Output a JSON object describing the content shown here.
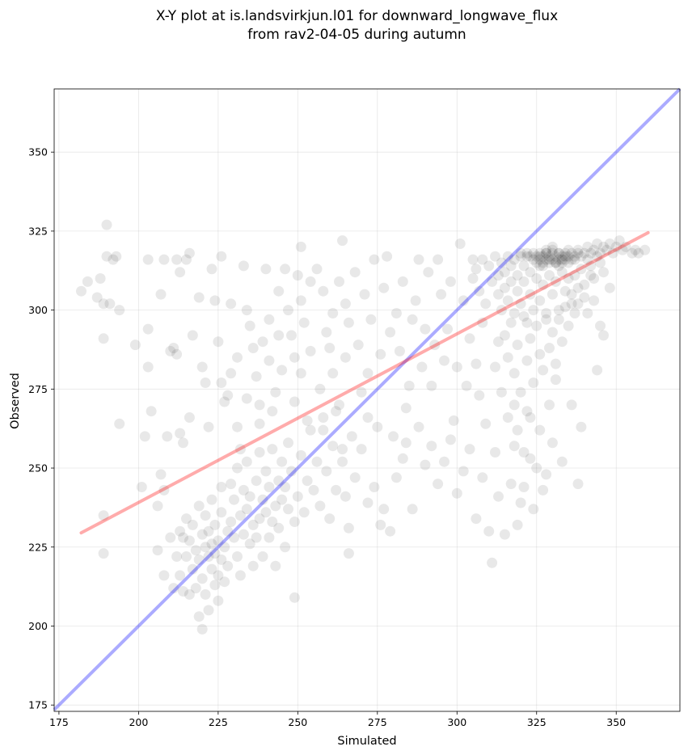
{
  "chart_data": {
    "type": "scatter",
    "title_lines": [
      "X-Y plot at is.landsvirkjun.l01 for downward_longwave_flux",
      "from rav2-04-05 during autumn"
    ],
    "xlabel": "Simulated",
    "ylabel": "Observed",
    "xlim": [
      173.5,
      370
    ],
    "ylim": [
      173,
      370
    ],
    "xticks": [
      175,
      200,
      225,
      250,
      275,
      300,
      325,
      350
    ],
    "yticks": [
      175,
      200,
      225,
      250,
      275,
      300,
      325,
      350
    ],
    "grid": true,
    "colors": {
      "points": "#000000",
      "identity_line": "#0000ff",
      "fit_line": "#ff0000"
    },
    "identity_line": {
      "x": [
        173.5,
        370
      ],
      "y": [
        173.5,
        370
      ]
    },
    "fit_line": {
      "x": [
        182,
        360
      ],
      "y": [
        229.5,
        324.5
      ]
    },
    "points": [
      [
        182,
        306
      ],
      [
        184,
        309
      ],
      [
        187,
        304
      ],
      [
        188,
        310
      ],
      [
        189,
        302
      ],
      [
        190,
        317
      ],
      [
        190,
        327
      ],
      [
        191,
        302
      ],
      [
        192,
        316
      ],
      [
        193,
        317
      ],
      [
        194,
        300
      ],
      [
        189,
        291
      ],
      [
        199,
        289
      ],
      [
        189,
        235
      ],
      [
        189,
        223
      ],
      [
        194,
        264
      ],
      [
        201,
        244
      ],
      [
        202,
        260
      ],
      [
        203,
        316
      ],
      [
        203,
        294
      ],
      [
        203,
        282
      ],
      [
        204,
        268
      ],
      [
        206,
        238
      ],
      [
        207,
        305
      ],
      [
        207,
        248
      ],
      [
        208,
        243
      ],
      [
        208,
        316
      ],
      [
        209,
        260
      ],
      [
        210,
        287
      ],
      [
        211,
        288
      ],
      [
        212,
        316
      ],
      [
        212,
        286
      ],
      [
        213,
        312
      ],
      [
        213,
        261
      ],
      [
        214,
        258
      ],
      [
        215,
        316
      ],
      [
        216,
        318
      ],
      [
        216,
        266
      ],
      [
        217,
        292
      ],
      [
        219,
        304
      ],
      [
        220,
        282
      ],
      [
        221,
        277
      ],
      [
        222,
        263
      ],
      [
        223,
        313
      ],
      [
        224,
        303
      ],
      [
        225,
        290
      ],
      [
        226,
        317
      ],
      [
        226,
        277
      ],
      [
        227,
        271
      ],
      [
        228,
        273
      ],
      [
        229,
        280
      ],
      [
        229,
        302
      ],
      [
        231,
        285
      ],
      [
        231,
        263
      ],
      [
        232,
        256
      ],
      [
        233,
        314
      ],
      [
        234,
        300
      ],
      [
        234,
        272
      ],
      [
        235,
        295
      ],
      [
        236,
        288
      ],
      [
        237,
        279
      ],
      [
        238,
        264
      ],
      [
        238,
        270
      ],
      [
        239,
        290
      ],
      [
        240,
        313
      ],
      [
        241,
        297
      ],
      [
        241,
        284
      ],
      [
        242,
        268
      ],
      [
        243,
        274
      ],
      [
        244,
        306
      ],
      [
        244,
        292
      ],
      [
        245,
        281
      ],
      [
        246,
        313
      ],
      [
        247,
        300
      ],
      [
        248,
        292
      ],
      [
        249,
        285
      ],
      [
        249,
        271
      ],
      [
        250,
        311
      ],
      [
        251,
        320
      ],
      [
        251,
        303
      ],
      [
        251,
        280
      ],
      [
        252,
        296
      ],
      [
        253,
        265
      ],
      [
        254,
        309
      ],
      [
        254,
        287
      ],
      [
        256,
        313
      ],
      [
        257,
        275
      ],
      [
        258,
        262
      ],
      [
        258,
        306
      ],
      [
        259,
        293
      ],
      [
        260,
        288
      ],
      [
        261,
        280
      ],
      [
        261,
        299
      ],
      [
        262,
        268
      ],
      [
        263,
        309
      ],
      [
        264,
        322
      ],
      [
        264,
        256
      ],
      [
        265,
        302
      ],
      [
        265,
        285
      ],
      [
        266,
        296
      ],
      [
        267,
        260
      ],
      [
        268,
        312
      ],
      [
        269,
        289
      ],
      [
        270,
        274
      ],
      [
        271,
        305
      ],
      [
        272,
        280
      ],
      [
        272,
        266
      ],
      [
        273,
        297
      ],
      [
        274,
        316
      ],
      [
        275,
        263
      ],
      [
        276,
        286
      ],
      [
        277,
        307
      ],
      [
        278,
        317
      ],
      [
        279,
        293
      ],
      [
        280,
        260
      ],
      [
        281,
        299
      ],
      [
        282,
        287
      ],
      [
        283,
        309
      ],
      [
        284,
        269
      ],
      [
        285,
        276
      ],
      [
        286,
        297
      ],
      [
        287,
        303
      ],
      [
        288,
        316
      ],
      [
        289,
        282
      ],
      [
        290,
        294
      ],
      [
        291,
        312
      ],
      [
        292,
        276
      ],
      [
        293,
        289
      ],
      [
        294,
        316
      ],
      [
        295,
        305
      ],
      [
        296,
        284
      ],
      [
        297,
        294
      ],
      [
        298,
        309
      ],
      [
        299,
        265
      ],
      [
        300,
        282
      ],
      [
        301,
        321
      ],
      [
        302,
        303
      ],
      [
        303,
        276
      ],
      [
        304,
        291
      ],
      [
        305,
        316
      ],
      [
        306,
        283
      ],
      [
        307,
        273
      ],
      [
        308,
        296
      ],
      [
        309,
        264
      ],
      [
        310,
        230
      ],
      [
        311,
        220
      ],
      [
        312,
        255
      ],
      [
        313,
        241
      ],
      [
        315,
        229
      ],
      [
        317,
        245
      ],
      [
        318,
        257
      ],
      [
        319,
        232
      ],
      [
        320,
        239
      ],
      [
        321,
        244
      ],
      [
        322,
        268
      ],
      [
        323,
        253
      ],
      [
        324,
        237
      ],
      [
        325,
        250
      ],
      [
        326,
        262
      ],
      [
        327,
        243
      ],
      [
        328,
        248
      ],
      [
        329,
        270
      ],
      [
        330,
        258
      ],
      [
        331,
        278
      ],
      [
        333,
        252
      ],
      [
        336,
        270
      ],
      [
        338,
        245
      ],
      [
        339,
        263
      ],
      [
        340,
        308
      ],
      [
        341,
        299
      ],
      [
        342,
        311
      ],
      [
        343,
        303
      ],
      [
        344,
        281
      ],
      [
        345,
        295
      ],
      [
        346,
        292
      ],
      [
        348,
        307
      ],
      [
        206,
        224
      ],
      [
        208,
        216
      ],
      [
        210,
        228
      ],
      [
        211,
        212
      ],
      [
        212,
        222
      ],
      [
        213,
        230
      ],
      [
        213,
        216
      ],
      [
        214,
        228
      ],
      [
        214,
        211
      ],
      [
        215,
        234
      ],
      [
        215,
        222
      ],
      [
        216,
        210
      ],
      [
        216,
        227
      ],
      [
        217,
        218
      ],
      [
        217,
        232
      ],
      [
        218,
        224
      ],
      [
        218,
        212
      ],
      [
        219,
        238
      ],
      [
        219,
        221
      ],
      [
        219,
        203
      ],
      [
        220,
        229
      ],
      [
        220,
        215
      ],
      [
        220,
        199
      ],
      [
        221,
        225
      ],
      [
        221,
        210
      ],
      [
        221,
        235
      ],
      [
        222,
        222
      ],
      [
        222,
        205
      ],
      [
        222,
        230
      ],
      [
        223,
        218
      ],
      [
        223,
        226
      ],
      [
        223,
        240
      ],
      [
        224,
        213
      ],
      [
        224,
        223
      ],
      [
        224,
        232
      ],
      [
        225,
        216
      ],
      [
        225,
        227
      ],
      [
        225,
        208
      ],
      [
        226,
        221
      ],
      [
        226,
        236
      ],
      [
        226,
        244
      ],
      [
        227,
        225
      ],
      [
        227,
        214
      ],
      [
        228,
        230
      ],
      [
        228,
        219
      ],
      [
        229,
        245
      ],
      [
        229,
        233
      ],
      [
        230,
        228
      ],
      [
        230,
        240
      ],
      [
        231,
        222
      ],
      [
        231,
        250
      ],
      [
        232,
        235
      ],
      [
        232,
        216
      ],
      [
        233,
        243
      ],
      [
        233,
        229
      ],
      [
        234,
        237
      ],
      [
        234,
        252
      ],
      [
        235,
        226
      ],
      [
        235,
        241
      ],
      [
        236,
        232
      ],
      [
        236,
        219
      ],
      [
        237,
        246
      ],
      [
        237,
        228
      ],
      [
        238,
        234
      ],
      [
        238,
        255
      ],
      [
        239,
        240
      ],
      [
        239,
        222
      ],
      [
        240,
        249
      ],
      [
        240,
        236
      ],
      [
        241,
        228
      ],
      [
        241,
        244
      ],
      [
        242,
        233
      ],
      [
        242,
        256
      ],
      [
        243,
        238
      ],
      [
        243,
        219
      ],
      [
        244,
        246
      ],
      [
        244,
        231
      ],
      [
        245,
        252
      ],
      [
        245,
        240
      ],
      [
        246,
        225
      ],
      [
        246,
        244
      ],
      [
        247,
        237
      ],
      [
        247,
        258
      ],
      [
        248,
        249
      ],
      [
        249,
        233
      ],
      [
        249,
        209
      ],
      [
        250,
        241
      ],
      [
        251,
        254
      ],
      [
        252,
        236
      ],
      [
        253,
        246
      ],
      [
        254,
        262
      ],
      [
        255,
        243
      ],
      [
        256,
        252
      ],
      [
        257,
        238
      ],
      [
        258,
        266
      ],
      [
        259,
        249
      ],
      [
        260,
        234
      ],
      [
        261,
        257
      ],
      [
        262,
        243
      ],
      [
        263,
        270
      ],
      [
        264,
        252
      ],
      [
        265,
        241
      ],
      [
        266,
        231
      ],
      [
        266,
        223
      ],
      [
        268,
        247
      ],
      [
        270,
        256
      ],
      [
        272,
        239
      ],
      [
        274,
        244
      ],
      [
        276,
        232
      ],
      [
        277,
        237
      ],
      [
        279,
        230
      ],
      [
        281,
        247
      ],
      [
        283,
        253
      ],
      [
        284,
        258
      ],
      [
        286,
        237
      ],
      [
        288,
        263
      ],
      [
        290,
        251
      ],
      [
        292,
        257
      ],
      [
        294,
        245
      ],
      [
        296,
        252
      ],
      [
        298,
        259
      ],
      [
        300,
        242
      ],
      [
        302,
        249
      ],
      [
        304,
        256
      ],
      [
        306,
        234
      ],
      [
        308,
        247
      ],
      [
        305,
        310
      ],
      [
        306,
        313
      ],
      [
        307,
        306
      ],
      [
        308,
        316
      ],
      [
        309,
        302
      ],
      [
        310,
        314
      ],
      [
        311,
        309
      ],
      [
        312,
        317
      ],
      [
        313,
        305
      ],
      [
        313,
        311
      ],
      [
        314,
        315
      ],
      [
        314,
        300
      ],
      [
        315,
        312
      ],
      [
        315,
        307
      ],
      [
        316,
        317
      ],
      [
        316,
        303
      ],
      [
        317,
        314
      ],
      [
        317,
        309
      ],
      [
        318,
        316
      ],
      [
        318,
        299
      ],
      [
        319,
        311
      ],
      [
        319,
        306
      ],
      [
        320,
        318
      ],
      [
        320,
        302
      ],
      [
        321,
        314
      ],
      [
        321,
        309
      ],
      [
        322,
        317
      ],
      [
        322,
        296
      ],
      [
        323,
        312
      ],
      [
        323,
        305
      ],
      [
        324,
        318
      ],
      [
        324,
        300
      ],
      [
        325,
        315
      ],
      [
        325,
        310
      ],
      [
        326,
        317
      ],
      [
        326,
        303
      ],
      [
        327,
        314
      ],
      [
        327,
        308
      ],
      [
        328,
        318
      ],
      [
        328,
        297
      ],
      [
        329,
        316
      ],
      [
        329,
        311
      ],
      [
        330,
        319
      ],
      [
        330,
        305
      ],
      [
        331,
        315
      ],
      [
        331,
        309
      ],
      [
        332,
        318
      ],
      [
        332,
        300
      ],
      [
        333,
        316
      ],
      [
        333,
        312
      ],
      [
        334,
        317
      ],
      [
        334,
        306
      ],
      [
        335,
        315
      ],
      [
        335,
        310
      ],
      [
        336,
        318
      ],
      [
        336,
        302
      ],
      [
        337,
        316
      ],
      [
        337,
        311
      ],
      [
        338,
        319
      ],
      [
        338,
        307
      ],
      [
        339,
        317
      ],
      [
        339,
        313
      ],
      [
        340,
        318
      ],
      [
        340,
        304
      ],
      [
        341,
        316
      ],
      [
        341,
        320
      ],
      [
        342,
        318
      ],
      [
        342,
        314
      ],
      [
        343,
        319
      ],
      [
        343,
        310
      ],
      [
        344,
        317
      ],
      [
        344,
        321
      ],
      [
        345,
        318
      ],
      [
        345,
        315
      ],
      [
        346,
        320
      ],
      [
        346,
        312
      ],
      [
        347,
        319
      ],
      [
        348,
        321
      ],
      [
        349,
        318
      ],
      [
        350,
        320
      ],
      [
        351,
        322
      ],
      [
        352,
        319
      ],
      [
        353,
        320
      ],
      [
        355,
        318
      ],
      [
        356,
        319
      ],
      [
        357,
        318
      ],
      [
        359,
        319
      ],
      [
        320,
        317
      ],
      [
        322,
        318
      ],
      [
        323,
        317
      ],
      [
        324,
        316
      ],
      [
        325,
        317
      ],
      [
        326,
        318
      ],
      [
        326,
        316
      ],
      [
        327,
        317
      ],
      [
        328,
        316
      ],
      [
        328,
        318
      ],
      [
        329,
        317
      ],
      [
        330,
        316
      ],
      [
        330,
        318
      ],
      [
        331,
        317
      ],
      [
        332,
        316
      ],
      [
        332,
        318
      ],
      [
        333,
        317
      ],
      [
        334,
        316
      ],
      [
        334,
        318
      ],
      [
        335,
        317
      ],
      [
        336,
        316
      ],
      [
        337,
        317
      ],
      [
        338,
        318
      ],
      [
        327,
        315
      ],
      [
        329,
        315
      ],
      [
        331,
        315
      ],
      [
        333,
        315
      ],
      [
        335,
        319
      ],
      [
        328,
        319
      ],
      [
        330,
        320
      ],
      [
        326,
        314
      ],
      [
        332,
        314
      ],
      [
        315,
        292
      ],
      [
        316,
        285
      ],
      [
        317,
        296
      ],
      [
        318,
        280
      ],
      [
        319,
        289
      ],
      [
        320,
        274
      ],
      [
        321,
        298
      ],
      [
        322,
        284
      ],
      [
        323,
        291
      ],
      [
        324,
        277
      ],
      [
        325,
        295
      ],
      [
        326,
        286
      ],
      [
        327,
        281
      ],
      [
        328,
        299
      ],
      [
        329,
        288
      ],
      [
        330,
        293
      ],
      [
        331,
        283
      ],
      [
        332,
        297
      ],
      [
        333,
        290
      ],
      [
        334,
        301
      ],
      [
        335,
        295
      ],
      [
        336,
        305
      ],
      [
        337,
        299
      ],
      [
        338,
        302
      ],
      [
        312,
        282
      ],
      [
        313,
        290
      ],
      [
        314,
        274
      ],
      [
        316,
        266
      ],
      [
        318,
        270
      ],
      [
        319,
        262
      ],
      [
        321,
        255
      ],
      [
        323,
        266
      ]
    ]
  }
}
